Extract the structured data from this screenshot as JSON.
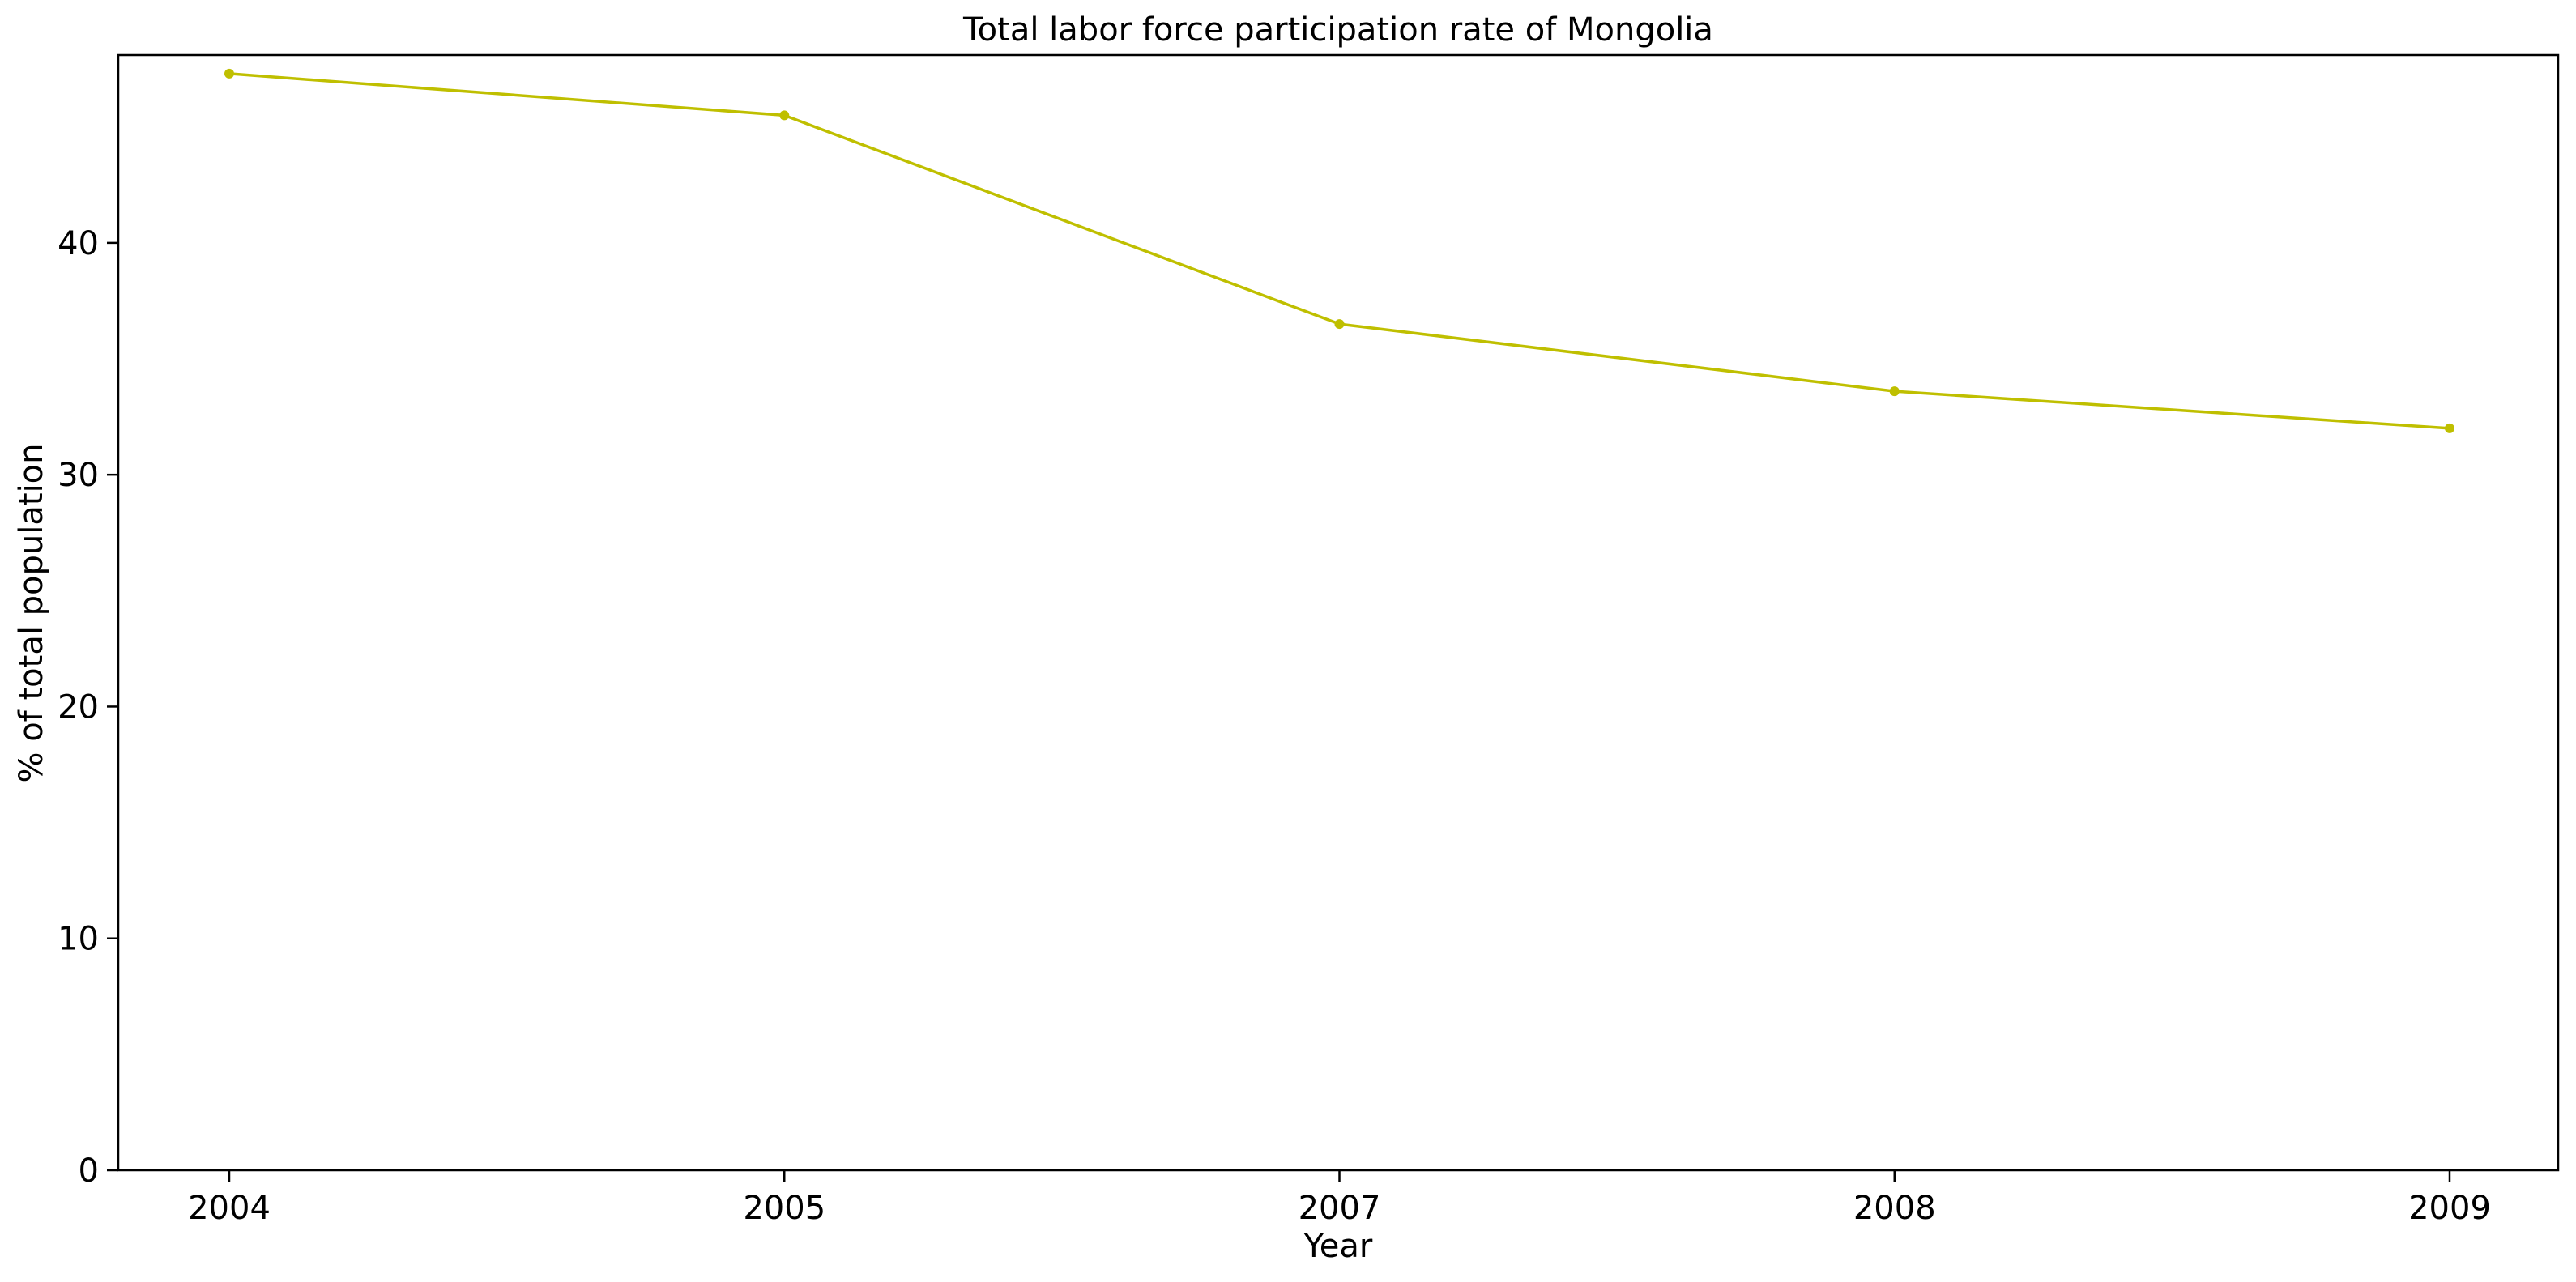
{
  "chart_data": {
    "type": "line",
    "title": "Total labor force participation rate of Mongolia",
    "xlabel": "Year",
    "ylabel": "% of total population",
    "categories": [
      "2004",
      "2005",
      "2007",
      "2008",
      "2009"
    ],
    "series": [
      {
        "values": [
          47.3,
          45.5,
          36.5,
          33.6,
          32.0
        ],
        "color": "#bfbf00",
        "marker": "circle"
      }
    ],
    "ylim": [
      0,
      48.1
    ],
    "yticks": [
      0,
      10,
      20,
      30,
      40
    ],
    "grid": false,
    "legend": "none"
  }
}
